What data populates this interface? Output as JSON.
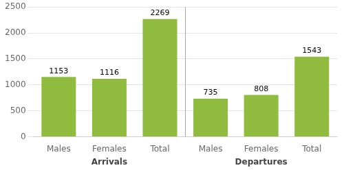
{
  "chart_data": {
    "type": "bar",
    "categories": [
      "Males",
      "Females",
      "Total",
      "Males",
      "Females",
      "Total"
    ],
    "values": [
      1153,
      1116,
      2269,
      735,
      808,
      1543
    ],
    "group_labels": [
      "Arrivals",
      "Departures"
    ],
    "color": "#8fbc3f",
    "ylim": [
      0,
      2500
    ],
    "yticks": [
      0,
      500,
      1000,
      1500,
      2000,
      2500
    ],
    "grid": true,
    "data_labels": true
  }
}
